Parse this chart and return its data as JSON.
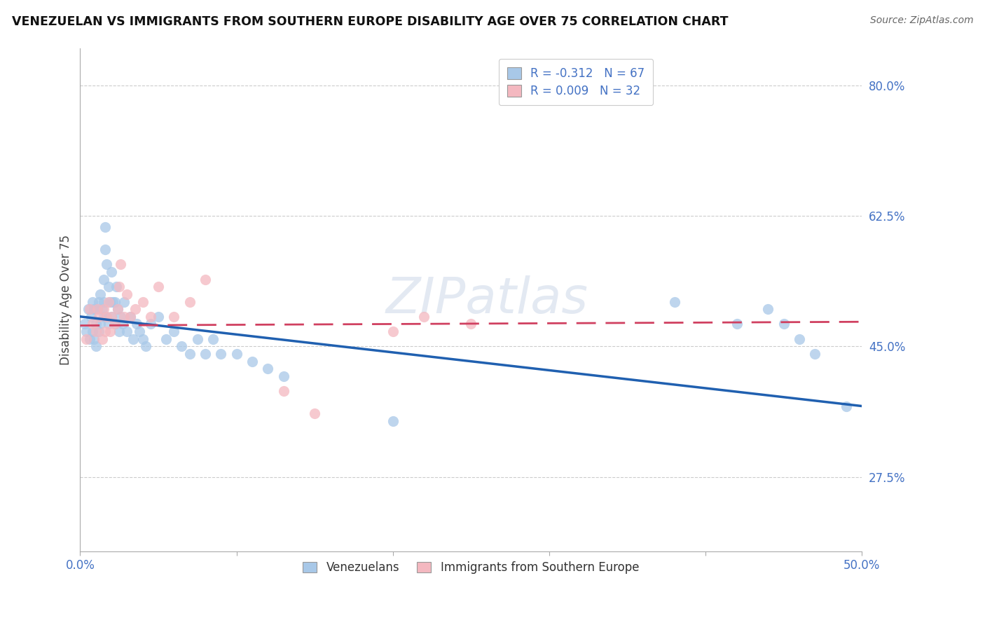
{
  "title": "VENEZUELAN VS IMMIGRANTS FROM SOUTHERN EUROPE DISABILITY AGE OVER 75 CORRELATION CHART",
  "source": "Source: ZipAtlas.com",
  "ylabel": "Disability Age Over 75",
  "xlim": [
    0.0,
    0.5
  ],
  "ylim": [
    0.175,
    0.85
  ],
  "yticks": [
    0.275,
    0.45,
    0.625,
    0.8
  ],
  "ytick_labels": [
    "27.5%",
    "45.0%",
    "62.5%",
    "80.0%"
  ],
  "xticks": [
    0.0,
    0.1,
    0.2,
    0.3,
    0.4,
    0.5
  ],
  "xtick_labels": [
    "0.0%",
    "",
    "",
    "",
    "",
    "50.0%"
  ],
  "legend_entry1": "R = -0.312   N = 67",
  "legend_entry2": "R = 0.009   N = 32",
  "legend_label1": "Venezuelans",
  "legend_label2": "Immigrants from Southern Europe",
  "blue_color": "#a8c8e8",
  "pink_color": "#f4b8c0",
  "line_blue": "#2060b0",
  "line_pink": "#d04060",
  "watermark": "ZIPatlas",
  "axis_color": "#4472c4",
  "venezuelan_x": [
    0.003,
    0.004,
    0.005,
    0.006,
    0.007,
    0.008,
    0.008,
    0.009,
    0.009,
    0.01,
    0.01,
    0.011,
    0.012,
    0.012,
    0.013,
    0.013,
    0.014,
    0.015,
    0.015,
    0.015,
    0.016,
    0.016,
    0.017,
    0.017,
    0.018,
    0.018,
    0.019,
    0.02,
    0.02,
    0.021,
    0.022,
    0.022,
    0.023,
    0.024,
    0.025,
    0.026,
    0.027,
    0.028,
    0.03,
    0.032,
    0.034,
    0.036,
    0.038,
    0.04,
    0.042,
    0.045,
    0.05,
    0.055,
    0.06,
    0.065,
    0.07,
    0.075,
    0.08,
    0.085,
    0.09,
    0.1,
    0.11,
    0.12,
    0.13,
    0.2,
    0.38,
    0.42,
    0.44,
    0.45,
    0.46,
    0.47,
    0.49
  ],
  "venezuelan_y": [
    0.48,
    0.47,
    0.5,
    0.46,
    0.49,
    0.51,
    0.47,
    0.5,
    0.46,
    0.48,
    0.45,
    0.5,
    0.51,
    0.47,
    0.52,
    0.48,
    0.5,
    0.49,
    0.51,
    0.54,
    0.58,
    0.61,
    0.56,
    0.49,
    0.53,
    0.48,
    0.51,
    0.55,
    0.49,
    0.51,
    0.48,
    0.51,
    0.53,
    0.5,
    0.47,
    0.49,
    0.48,
    0.51,
    0.47,
    0.49,
    0.46,
    0.48,
    0.47,
    0.46,
    0.45,
    0.48,
    0.49,
    0.46,
    0.47,
    0.45,
    0.44,
    0.46,
    0.44,
    0.46,
    0.44,
    0.44,
    0.43,
    0.42,
    0.41,
    0.35,
    0.51,
    0.48,
    0.5,
    0.48,
    0.46,
    0.44,
    0.37
  ],
  "southern_europe_x": [
    0.004,
    0.006,
    0.008,
    0.01,
    0.011,
    0.012,
    0.014,
    0.015,
    0.016,
    0.017,
    0.018,
    0.019,
    0.02,
    0.022,
    0.024,
    0.025,
    0.026,
    0.028,
    0.03,
    0.032,
    0.035,
    0.04,
    0.045,
    0.05,
    0.06,
    0.07,
    0.08,
    0.13,
    0.15,
    0.2,
    0.22,
    0.25
  ],
  "southern_europe_y": [
    0.46,
    0.5,
    0.48,
    0.47,
    0.5,
    0.49,
    0.46,
    0.5,
    0.47,
    0.49,
    0.51,
    0.47,
    0.49,
    0.48,
    0.5,
    0.53,
    0.56,
    0.49,
    0.52,
    0.49,
    0.5,
    0.51,
    0.49,
    0.53,
    0.49,
    0.51,
    0.54,
    0.39,
    0.36,
    0.47,
    0.49,
    0.48
  ],
  "ven_line_x0": 0.0,
  "ven_line_x1": 0.5,
  "ven_line_y0": 0.49,
  "ven_line_y1": 0.37,
  "seur_line_x0": 0.0,
  "seur_line_x1": 0.5,
  "seur_line_y0": 0.478,
  "seur_line_y1": 0.483
}
